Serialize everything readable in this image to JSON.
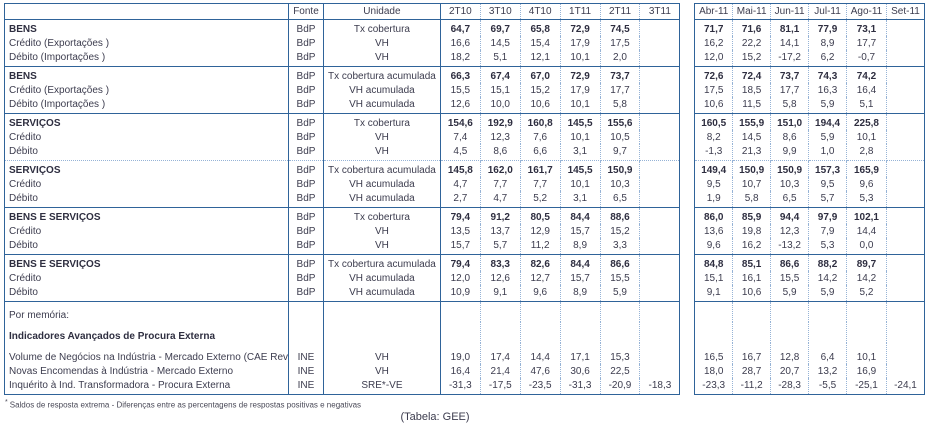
{
  "table": {
    "col_headers": {
      "fonte": "Fonte",
      "unidade": "Unidade",
      "quarters": [
        "2T10",
        "3T10",
        "4T10",
        "1T11",
        "2T11",
        "3T11"
      ],
      "months": [
        "Abr-11",
        "Mai-11",
        "Jun-11",
        "Jul-11",
        "Ago-11",
        "Set-11"
      ]
    },
    "sections": [
      {
        "divider": "solid",
        "rows": [
          {
            "label": "BENS",
            "bold": true,
            "fonte": "BdP",
            "unidade": "Tx cobertura",
            "q": [
              "64,7",
              "69,7",
              "65,8",
              "72,9",
              "74,5",
              ""
            ],
            "m": [
              "71,7",
              "71,6",
              "81,1",
              "77,9",
              "73,1",
              ""
            ]
          },
          {
            "label": "Crédito (Exportações )",
            "fonte": "BdP",
            "unidade": "VH",
            "q": [
              "16,6",
              "14,5",
              "15,4",
              "17,9",
              "17,5",
              ""
            ],
            "m": [
              "16,2",
              "22,2",
              "14,1",
              "8,9",
              "17,7",
              ""
            ]
          },
          {
            "label": "Débito (Importações )",
            "fonte": "BdP",
            "unidade": "VH",
            "q": [
              "18,2",
              "5,1",
              "12,1",
              "10,1",
              "2,0",
              ""
            ],
            "m": [
              "12,0",
              "15,2",
              "-17,2",
              "6,2",
              "-0,7",
              ""
            ]
          }
        ]
      },
      {
        "divider": "solid",
        "rows": [
          {
            "label": "BENS",
            "bold": true,
            "fonte": "BdP",
            "unidade": "Tx cobertura acumulada",
            "q": [
              "66,3",
              "67,4",
              "67,0",
              "72,9",
              "73,7",
              ""
            ],
            "m": [
              "72,6",
              "72,4",
              "73,7",
              "74,3",
              "74,2",
              ""
            ]
          },
          {
            "label": "Crédito (Exportações )",
            "fonte": "BdP",
            "unidade": "VH acumulada",
            "q": [
              "15,5",
              "15,1",
              "15,2",
              "17,9",
              "17,7",
              ""
            ],
            "m": [
              "17,5",
              "18,5",
              "17,7",
              "16,3",
              "16,4",
              ""
            ]
          },
          {
            "label": "Débito (Importações )",
            "fonte": "BdP",
            "unidade": "VH acumulada",
            "q": [
              "12,6",
              "10,0",
              "10,6",
              "10,1",
              "5,8",
              ""
            ],
            "m": [
              "10,6",
              "11,5",
              "5,8",
              "5,9",
              "5,1",
              ""
            ]
          }
        ]
      },
      {
        "divider": "dotted",
        "rows": [
          {
            "label": "SERVIÇOS",
            "bold": true,
            "fonte": "BdP",
            "unidade": "Tx cobertura",
            "q": [
              "154,6",
              "192,9",
              "160,8",
              "145,5",
              "155,6",
              ""
            ],
            "m": [
              "160,5",
              "155,9",
              "151,0",
              "194,4",
              "225,8",
              ""
            ]
          },
          {
            "label": "Crédito",
            "fonte": "BdP",
            "unidade": "VH",
            "q": [
              "7,4",
              "12,3",
              "7,6",
              "10,1",
              "10,5",
              ""
            ],
            "m": [
              "8,2",
              "14,5",
              "8,6",
              "5,9",
              "10,1",
              ""
            ]
          },
          {
            "label": "Débito",
            "fonte": "BdP",
            "unidade": "VH",
            "q": [
              "4,5",
              "8,6",
              "6,6",
              "3,1",
              "9,7",
              ""
            ],
            "m": [
              "-1,3",
              "21,3",
              "9,9",
              "1,0",
              "2,8",
              ""
            ]
          }
        ]
      },
      {
        "divider": "solid",
        "rows": [
          {
            "label": "SERVIÇOS",
            "bold": true,
            "fonte": "BdP",
            "unidade": "Tx cobertura acumulada",
            "q": [
              "145,8",
              "162,0",
              "161,7",
              "145,5",
              "150,9",
              ""
            ],
            "m": [
              "149,4",
              "150,9",
              "150,9",
              "157,3",
              "165,9",
              ""
            ]
          },
          {
            "label": "Crédito",
            "fonte": "BdP",
            "unidade": "VH acumulada",
            "q": [
              "4,7",
              "7,7",
              "7,7",
              "10,1",
              "10,3",
              ""
            ],
            "m": [
              "9,5",
              "10,7",
              "10,3",
              "9,5",
              "9,6",
              ""
            ]
          },
          {
            "label": "Débito",
            "fonte": "BdP",
            "unidade": "VH acumulada",
            "q": [
              "2,7",
              "4,7",
              "5,2",
              "3,1",
              "6,5",
              ""
            ],
            "m": [
              "1,9",
              "5,8",
              "6,5",
              "5,7",
              "5,3",
              ""
            ]
          }
        ]
      },
      {
        "divider": "solid",
        "rows": [
          {
            "label": "BENS E SERVIÇOS",
            "bold": true,
            "fonte": "BdP",
            "unidade": "Tx cobertura",
            "q": [
              "79,4",
              "91,2",
              "80,5",
              "84,4",
              "88,6",
              ""
            ],
            "m": [
              "86,0",
              "85,9",
              "94,4",
              "97,9",
              "102,1",
              ""
            ]
          },
          {
            "label": "Crédito",
            "fonte": "BdP",
            "unidade": "VH",
            "q": [
              "13,5",
              "13,7",
              "12,9",
              "15,7",
              "15,2",
              ""
            ],
            "m": [
              "13,6",
              "19,8",
              "12,3",
              "7,9",
              "14,4",
              ""
            ]
          },
          {
            "label": "Débito",
            "fonte": "BdP",
            "unidade": "VH",
            "q": [
              "15,7",
              "5,7",
              "11,2",
              "8,9",
              "3,3",
              ""
            ],
            "m": [
              "9,6",
              "16,2",
              "-13,2",
              "5,3",
              "0,0",
              ""
            ]
          }
        ]
      },
      {
        "divider": "solid",
        "rows": [
          {
            "label": "BENS E SERVIÇOS",
            "bold": true,
            "fonte": "BdP",
            "unidade": "Tx cobertura acumulada",
            "q": [
              "79,4",
              "83,3",
              "82,6",
              "84,4",
              "86,6",
              ""
            ],
            "m": [
              "84,8",
              "85,1",
              "86,6",
              "88,2",
              "89,7",
              ""
            ]
          },
          {
            "label": "Crédito",
            "fonte": "BdP",
            "unidade": "VH acumulada",
            "q": [
              "12,0",
              "12,6",
              "12,7",
              "15,7",
              "15,5",
              ""
            ],
            "m": [
              "15,1",
              "16,1",
              "15,5",
              "14,2",
              "14,2",
              ""
            ]
          },
          {
            "label": "Débito",
            "fonte": "BdP",
            "unidade": "VH acumulada",
            "q": [
              "10,9",
              "9,1",
              "9,6",
              "8,9",
              "5,9",
              ""
            ],
            "m": [
              "9,1",
              "10,6",
              "5,9",
              "5,9",
              "5,2",
              ""
            ]
          }
        ]
      }
    ],
    "memo": {
      "divider": "solid",
      "rows": [
        {
          "label": "Por memória:",
          "cls": "title",
          "fonte": "",
          "unidade": "",
          "q": [
            "",
            "",
            "",
            "",
            "",
            ""
          ],
          "m": [
            "",
            "",
            "",
            "",
            "",
            ""
          ]
        },
        {
          "label": "Indicadores Avançados de Procura Externa",
          "cls": "subtitle",
          "fonte": "",
          "unidade": "",
          "q": [
            "",
            "",
            "",
            "",
            "",
            ""
          ],
          "m": [
            "",
            "",
            "",
            "",
            "",
            ""
          ]
        },
        {
          "label": "Volume de Negócios na Indústria - Mercado Externo (CAE Rev",
          "cls": "first",
          "fonte": "INE",
          "unidade": "VH",
          "q": [
            "19,0",
            "17,4",
            "14,4",
            "17,1",
            "15,3",
            ""
          ],
          "m": [
            "16,5",
            "16,7",
            "12,8",
            "6,4",
            "10,1",
            ""
          ]
        },
        {
          "label": "Novas Encomendas à Indústria - Mercado Externo",
          "fonte": "INE",
          "unidade": "VH",
          "q": [
            "16,4",
            "21,4",
            "47,6",
            "30,6",
            "22,5",
            ""
          ],
          "m": [
            "18,0",
            "28,7",
            "20,7",
            "13,2",
            "16,9",
            ""
          ]
        },
        {
          "label": "Inquérito à Ind. Transformadora - Procura Externa",
          "fonte": "INE",
          "unidade": "SRE*-VE",
          "q": [
            "-31,3",
            "-17,5",
            "-23,5",
            "-31,3",
            "-20,9",
            "-18,3"
          ],
          "m": [
            "-23,3",
            "-11,2",
            "-28,3",
            "-5,5",
            "-25,1",
            "-24,1"
          ]
        }
      ]
    },
    "footnote_marker": "*",
    "footnote": "Saldos de resposta extrema - Diferenças entre as percentagens de respostas positivas e negativas",
    "caption": "(Tabela: GEE)"
  }
}
